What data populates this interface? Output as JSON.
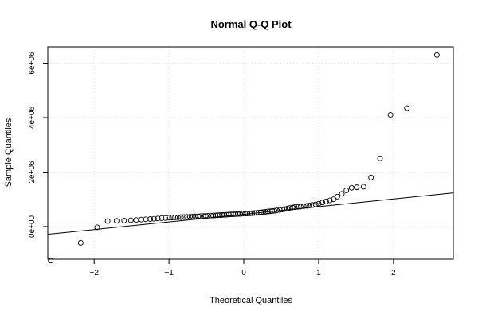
{
  "chart_data": {
    "type": "scatter",
    "title": "Normal Q-Q Plot",
    "xlabel": "Theoretical Quantiles",
    "ylabel": "Sample Quantiles",
    "xlim": [
      -2.62,
      2.8
    ],
    "ylim": [
      -1200000,
      6600000
    ],
    "x_ticks": [
      -2,
      -1,
      0,
      1,
      2
    ],
    "x_tick_labels": [
      "−2",
      "−1",
      "0",
      "1",
      "2"
    ],
    "y_ticks": [
      0,
      2000000,
      4000000,
      6000000
    ],
    "y_tick_labels": [
      "0e+00",
      "2e+06",
      "4e+06",
      "6e+06"
    ],
    "grid": true,
    "reference_line": {
      "intercept": 450000,
      "slope": 280000
    },
    "series": [
      {
        "marker": "open-circle",
        "points": [
          [
            -2.58,
            -1250000
          ],
          [
            -2.18,
            -600000
          ],
          [
            -1.96,
            -30000
          ],
          [
            -1.82,
            200000
          ],
          [
            -1.7,
            210000
          ],
          [
            -1.6,
            220000
          ],
          [
            -1.51,
            230000
          ],
          [
            -1.44,
            240000
          ],
          [
            -1.37,
            255000
          ],
          [
            -1.31,
            265000
          ],
          [
            -1.25,
            275000
          ],
          [
            -1.2,
            285000
          ],
          [
            -1.15,
            295000
          ],
          [
            -1.1,
            305000
          ],
          [
            -1.05,
            315000
          ],
          [
            -1.0,
            325000
          ],
          [
            -0.96,
            330000
          ],
          [
            -0.92,
            335000
          ],
          [
            -0.88,
            340000
          ],
          [
            -0.84,
            345000
          ],
          [
            -0.8,
            350000
          ],
          [
            -0.76,
            355000
          ],
          [
            -0.72,
            360000
          ],
          [
            -0.68,
            365000
          ],
          [
            -0.65,
            370000
          ],
          [
            -0.61,
            375000
          ],
          [
            -0.58,
            380000
          ],
          [
            -0.54,
            385000
          ],
          [
            -0.51,
            390000
          ],
          [
            -0.48,
            395000
          ],
          [
            -0.44,
            400000
          ],
          [
            -0.41,
            405000
          ],
          [
            -0.38,
            410000
          ],
          [
            -0.35,
            415000
          ],
          [
            -0.32,
            420000
          ],
          [
            -0.29,
            425000
          ],
          [
            -0.26,
            430000
          ],
          [
            -0.23,
            435000
          ],
          [
            -0.2,
            440000
          ],
          [
            -0.17,
            445000
          ],
          [
            -0.14,
            450000
          ],
          [
            -0.11,
            455000
          ],
          [
            -0.08,
            460000
          ],
          [
            -0.05,
            465000
          ],
          [
            -0.02,
            470000
          ],
          [
            0.02,
            475000
          ],
          [
            0.05,
            480000
          ],
          [
            0.08,
            485000
          ],
          [
            0.11,
            490000
          ],
          [
            0.14,
            495000
          ],
          [
            0.17,
            500000
          ],
          [
            0.2,
            510000
          ],
          [
            0.23,
            520000
          ],
          [
            0.26,
            530000
          ],
          [
            0.29,
            540000
          ],
          [
            0.32,
            550000
          ],
          [
            0.35,
            560000
          ],
          [
            0.38,
            570000
          ],
          [
            0.41,
            580000
          ],
          [
            0.44,
            595000
          ],
          [
            0.48,
            610000
          ],
          [
            0.51,
            625000
          ],
          [
            0.54,
            640000
          ],
          [
            0.58,
            660000
          ],
          [
            0.61,
            680000
          ],
          [
            0.65,
            700000
          ],
          [
            0.68,
            710000
          ],
          [
            0.72,
            720000
          ],
          [
            0.76,
            730000
          ],
          [
            0.8,
            745000
          ],
          [
            0.84,
            760000
          ],
          [
            0.88,
            775000
          ],
          [
            0.92,
            790000
          ],
          [
            0.96,
            810000
          ],
          [
            1.0,
            840000
          ],
          [
            1.05,
            880000
          ],
          [
            1.1,
            920000
          ],
          [
            1.15,
            960000
          ],
          [
            1.2,
            1000000
          ],
          [
            1.25,
            1100000
          ],
          [
            1.31,
            1200000
          ],
          [
            1.37,
            1330000
          ],
          [
            1.44,
            1420000
          ],
          [
            1.51,
            1440000
          ],
          [
            1.6,
            1460000
          ],
          [
            1.7,
            1800000
          ],
          [
            1.82,
            2500000
          ],
          [
            1.96,
            4100000
          ],
          [
            2.18,
            4350000
          ],
          [
            2.58,
            6300000
          ]
        ]
      }
    ]
  }
}
